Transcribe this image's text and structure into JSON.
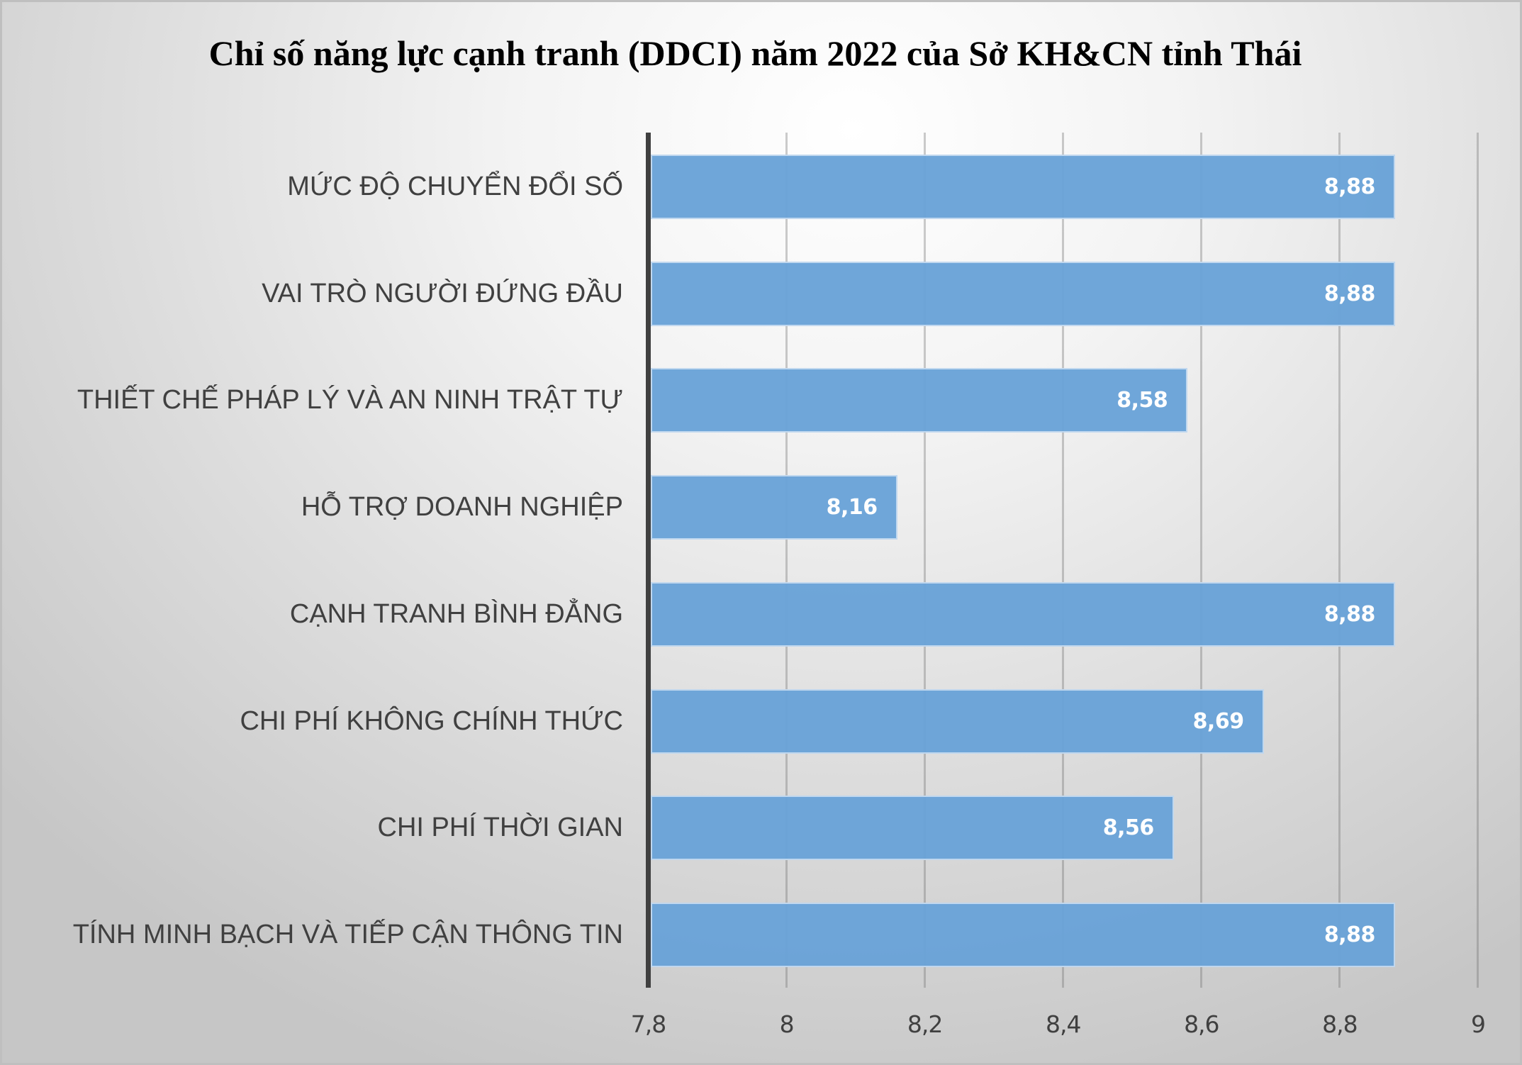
{
  "chart_data": {
    "type": "bar",
    "orientation": "horizontal",
    "title": "Chỉ số năng lực cạnh tranh (DDCI) năm 2022 của Sở KH&CN tỉnh Thái",
    "categories": [
      "MỨC ĐỘ CHUYỂN ĐỔI SỐ",
      "VAI TRÒ NGƯỜI ĐỨNG ĐẦU",
      "THIẾT CHẾ PHÁP LÝ VÀ AN NINH TRẬT TỰ",
      "HỖ TRỢ DOANH NGHIỆP",
      "CẠNH TRANH BÌNH ĐẲNG",
      "CHI PHÍ KHÔNG CHÍNH THỨC",
      "CHI PHÍ THỜI GIAN",
      "TÍNH MINH BẠCH VÀ TIẾP CẬN THÔNG TIN"
    ],
    "values": [
      8.88,
      8.88,
      8.58,
      8.16,
      8.88,
      8.69,
      8.56,
      8.88
    ],
    "value_labels": [
      "8,88",
      "8,88",
      "8,58",
      "8,16",
      "8,88",
      "8,69",
      "8,56",
      "8,88"
    ],
    "xlabel": "",
    "ylabel": "",
    "xlim": [
      7.8,
      9.0
    ],
    "x_ticks": [
      7.8,
      8.0,
      8.2,
      8.4,
      8.6,
      8.8,
      9.0
    ],
    "x_tick_labels": [
      "7,8",
      "8",
      "8,2",
      "8,4",
      "8,6",
      "8,8",
      "9"
    ],
    "grid": {
      "vertical": true,
      "horizontal": false
    },
    "legend": null,
    "colors": {
      "bar": "#6fa5d7",
      "axis": "#404040",
      "label": "#404040",
      "value_label": "#ffffff"
    }
  }
}
